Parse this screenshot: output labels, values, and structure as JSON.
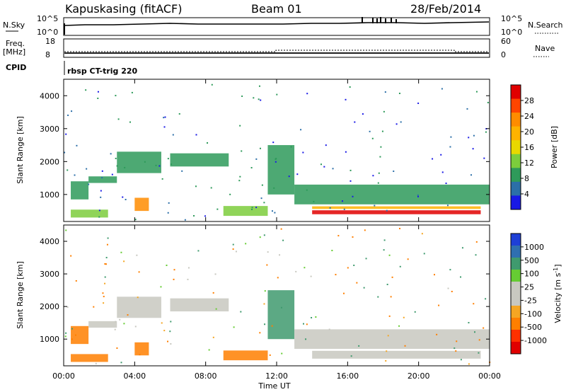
{
  "header": {
    "station": "Kapuskasing (fitACF)",
    "beam": "Beam 01",
    "date": "28/Feb/2014"
  },
  "strips": {
    "nsky_label": "N.Sky",
    "nsky_ticks": [
      "10^5",
      "10^0"
    ],
    "nsearch_label": "N.Search",
    "nsearch_ticks": [
      "10^5",
      "10^0"
    ],
    "freq_label": "Freq.",
    "freq_unit": "[MHz]",
    "freq_ticks": [
      "18",
      "8"
    ],
    "nave_label": "Nave",
    "nave_ticks": [
      "60",
      "0"
    ],
    "cpid_label": "CPID",
    "cpid_value": "rbsp CT-trig 220"
  },
  "axes": {
    "y_label": "Slant Range [km]",
    "y_ticks": [
      "4000",
      "3000",
      "2000",
      "1000"
    ],
    "x_ticks": [
      "00:00",
      "04:00",
      "08:00",
      "12:00",
      "16:00",
      "20:00",
      "00:00"
    ],
    "x_label": "Time UT"
  },
  "colorbars": {
    "power": {
      "label": "Power [dB]",
      "ticks": [
        "28",
        "24",
        "20",
        "16",
        "12",
        "8",
        "4"
      ],
      "colors": [
        "#e00000",
        "#ff4500",
        "#ff8c00",
        "#ffb300",
        "#e8d800",
        "#7ccd3c",
        "#2e9a5a",
        "#2b6fa8",
        "#1919e6"
      ]
    },
    "velocity": {
      "label": "Velocity [m s",
      "label_sup": "-1",
      "label_end": "]",
      "ticks": [
        "1000",
        "500",
        "100",
        "25",
        "-25",
        "-100",
        "-500",
        "-1000"
      ],
      "colors": [
        "#1e3fd6",
        "#2f6fb0",
        "#3f9a6e",
        "#66cc33",
        "#c8c8c0",
        "#c8c8c0",
        "#f5a623",
        "#ff7f00",
        "#ff3000",
        "#e00000"
      ]
    }
  },
  "chart_data": [
    {
      "type": "heatmap",
      "title": "",
      "xlabel": "",
      "ylabel": "Slant Range [km]",
      "xlim": [
        0,
        24
      ],
      "ylim": [
        180,
        4500
      ],
      "value_label": "Power [dB]",
      "regions": [
        {
          "t0": 0.4,
          "t1": 2.5,
          "r0": 300,
          "r1": 540,
          "power": 10
        },
        {
          "t0": 0.4,
          "t1": 1.4,
          "r0": 850,
          "r1": 1400,
          "power": 9
        },
        {
          "t0": 1.4,
          "t1": 3.0,
          "r0": 1350,
          "r1": 1550,
          "power": 8
        },
        {
          "t0": 3.0,
          "t1": 5.5,
          "r0": 1650,
          "r1": 2300,
          "power": 6
        },
        {
          "t0": 4.0,
          "t1": 4.8,
          "r0": 500,
          "r1": 900,
          "power": 18
        },
        {
          "t0": 6.0,
          "t1": 9.3,
          "r0": 1850,
          "r1": 2250,
          "power": 6
        },
        {
          "t0": 9.0,
          "t1": 11.5,
          "r0": 350,
          "r1": 650,
          "power": 11
        },
        {
          "t0": 11.5,
          "t1": 13.0,
          "r0": 1000,
          "r1": 2500,
          "power": 7
        },
        {
          "t0": 13.0,
          "t1": 24.0,
          "r0": 700,
          "r1": 1300,
          "power": 6
        },
        {
          "t0": 14.0,
          "t1": 23.5,
          "r0": 400,
          "r1": 520,
          "power": 28
        },
        {
          "t0": 14.0,
          "t1": 23.5,
          "r0": 560,
          "r1": 640,
          "power": 16
        }
      ]
    },
    {
      "type": "heatmap",
      "title": "",
      "xlabel": "Time UT",
      "ylabel": "Slant Range [km]",
      "xlim": [
        0,
        24
      ],
      "ylim": [
        180,
        4500
      ],
      "value_label": "Velocity [m s-1]",
      "regions": [
        {
          "t0": 0.4,
          "t1": 2.5,
          "r0": 300,
          "r1": 540,
          "velocity": -200
        },
        {
          "t0": 0.4,
          "t1": 1.4,
          "r0": 850,
          "r1": 1400,
          "velocity": -150
        },
        {
          "t0": 1.4,
          "t1": 3.0,
          "r0": 1350,
          "r1": 1550,
          "velocity": 0
        },
        {
          "t0": 3.0,
          "t1": 5.5,
          "r0": 1650,
          "r1": 2300,
          "velocity": 0
        },
        {
          "t0": 4.0,
          "t1": 4.8,
          "r0": 500,
          "r1": 900,
          "velocity": -120
        },
        {
          "t0": 6.0,
          "t1": 9.3,
          "r0": 1850,
          "r1": 2250,
          "velocity": 0
        },
        {
          "t0": 9.0,
          "t1": 11.5,
          "r0": 350,
          "r1": 650,
          "velocity": -300
        },
        {
          "t0": 11.5,
          "t1": 13.0,
          "r0": 1000,
          "r1": 2500,
          "velocity": 80
        },
        {
          "t0": 13.0,
          "t1": 24.0,
          "r0": 700,
          "r1": 1300,
          "velocity": 0
        },
        {
          "t0": 14.0,
          "t1": 23.5,
          "r0": 400,
          "r1": 640,
          "velocity": 0
        }
      ]
    }
  ]
}
